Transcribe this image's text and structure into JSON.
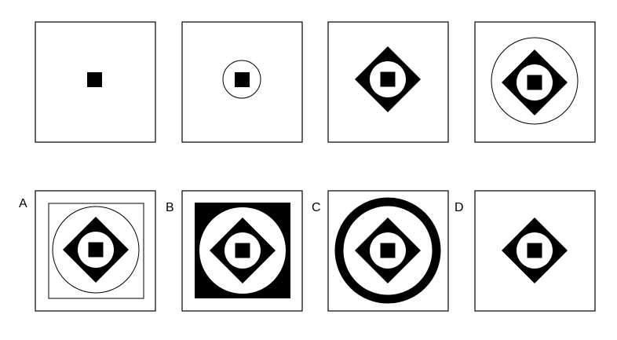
{
  "options": [
    {
      "label": "A"
    },
    {
      "label": "B"
    },
    {
      "label": "C"
    },
    {
      "label": "D"
    }
  ]
}
